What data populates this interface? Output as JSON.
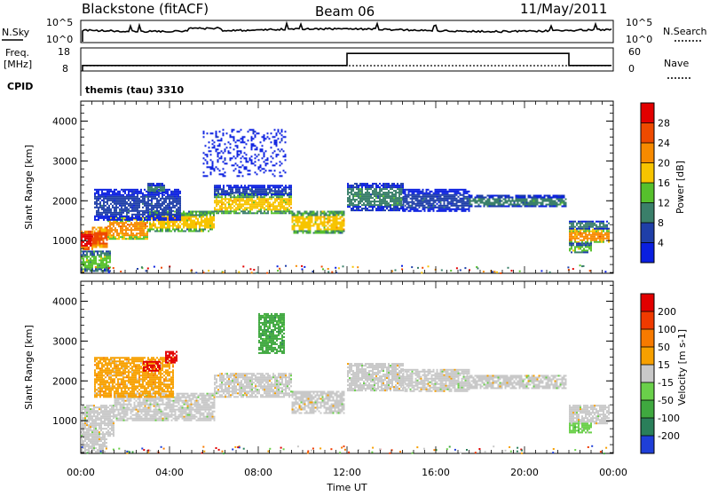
{
  "header": {
    "station": "Blackstone (fitACF)",
    "beam": "Beam 06",
    "date": "11/May/2011"
  },
  "strip_labels": {
    "nsky": "N.Sky",
    "nsky_top": "10^5",
    "nsky_bottom": "10^0",
    "nsearch": "N.Search",
    "nsearch_top": "10^5",
    "nsearch_bottom": "10^0",
    "freq": "Freq.",
    "freq_unit": "[MHz]",
    "freq_top": "18",
    "freq_bottom": "8",
    "nave": "Nave",
    "nave_top": "60",
    "nave_bottom": "0",
    "cpid": "CPID",
    "cpid_text": "themis (tau) 3310"
  },
  "chart_data": [
    {
      "type": "heatmap",
      "panel": "power",
      "ylabel": "Slant Range [km]",
      "xlabel": "Time UT",
      "ylim": [
        180,
        4500
      ],
      "yticks": [
        1000,
        2000,
        3000,
        4000
      ],
      "xlim": [
        0,
        24
      ],
      "xticks": [
        "00:00",
        "04:00",
        "08:00",
        "12:00",
        "16:00",
        "20:00",
        "00:00"
      ],
      "colorbar": {
        "label": "Power [dB]",
        "ticks": [
          "4",
          "8",
          "12",
          "16",
          "20",
          "24",
          "28"
        ],
        "colors": [
          "#0a1fe0",
          "#1f3fa8",
          "#3a7f6a",
          "#56c02c",
          "#f7c400",
          "#f78a00",
          "#ee4a00",
          "#e20000"
        ]
      },
      "bands": [
        {
          "t0": 0.0,
          "t1": 0.5,
          "r0": 800,
          "r1": 1250,
          "level": 7
        },
        {
          "t0": 0.5,
          "t1": 1.2,
          "r0": 850,
          "r1": 1350,
          "level": 6
        },
        {
          "t0": 1.2,
          "t1": 3.0,
          "r0": 1050,
          "r1": 1600,
          "level": 5
        },
        {
          "t0": 3.0,
          "t1": 6.0,
          "r0": 1250,
          "r1": 1750,
          "level": 4
        },
        {
          "t0": 0.6,
          "t1": 4.5,
          "r0": 1500,
          "r1": 2300,
          "level": 1
        },
        {
          "t0": 3.0,
          "t1": 3.8,
          "r0": 2200,
          "r1": 2450,
          "level": 2
        },
        {
          "t0": 6.0,
          "t1": 9.5,
          "r0": 1700,
          "r1": 2200,
          "level": 4
        },
        {
          "t0": 9.5,
          "t1": 11.9,
          "r0": 1200,
          "r1": 1750,
          "level": 4
        },
        {
          "t0": 6.0,
          "t1": 9.5,
          "r0": 2150,
          "r1": 2400,
          "level": 1
        },
        {
          "t0": 0.0,
          "t1": 1.3,
          "r0": 250,
          "r1": 750,
          "level": 3
        },
        {
          "t0": 12.0,
          "t1": 14.5,
          "r0": 1750,
          "r1": 2450,
          "level": 2
        },
        {
          "t0": 14.5,
          "t1": 17.5,
          "r0": 1750,
          "r1": 2300,
          "level": 1
        },
        {
          "t0": 17.5,
          "t1": 21.9,
          "r0": 1850,
          "r1": 2150,
          "level": 2
        },
        {
          "t0": 22.0,
          "t1": 23.8,
          "r0": 950,
          "r1": 1300,
          "level": 5
        },
        {
          "t0": 22.0,
          "t1": 23.8,
          "r0": 1300,
          "r1": 1500,
          "level": 2
        },
        {
          "t0": 22.0,
          "t1": 23.0,
          "r0": 700,
          "r1": 950,
          "level": 3
        },
        {
          "t0": 5.5,
          "t1": 9.2,
          "r0": 2600,
          "r1": 3800,
          "level": 0
        }
      ]
    },
    {
      "type": "heatmap",
      "panel": "velocity",
      "ylabel": "Slant Range [km]",
      "xlabel": "Time UT",
      "ylim": [
        180,
        4500
      ],
      "yticks": [
        1000,
        2000,
        3000,
        4000
      ],
      "xlim": [
        0,
        24
      ],
      "xticks": [
        "00:00",
        "04:00",
        "08:00",
        "12:00",
        "16:00",
        "20:00",
        "00:00"
      ],
      "colorbar": {
        "label": "Velocity [m s-1]",
        "ticks": [
          "200",
          "100",
          "50",
          "15",
          "-15",
          "-50",
          "-100",
          "-200"
        ],
        "colors": [
          "#1f3fd8",
          "#2a7f5a",
          "#3fa83f",
          "#6ad04a",
          "#c8c8c8",
          "#f7a000",
          "#f77a00",
          "#f03a00",
          "#e20000"
        ]
      },
      "bands": [
        {
          "t0": 0.0,
          "t1": 1.5,
          "r0": 600,
          "r1": 1400,
          "level": 4
        },
        {
          "t0": 1.5,
          "t1": 6.0,
          "r0": 1000,
          "r1": 1700,
          "level": 4
        },
        {
          "t0": 0.6,
          "t1": 4.2,
          "r0": 1600,
          "r1": 2600,
          "level": 5
        },
        {
          "t0": 2.8,
          "t1": 3.6,
          "r0": 2250,
          "r1": 2500,
          "level": 8
        },
        {
          "t0": 3.8,
          "t1": 4.3,
          "r0": 2450,
          "r1": 2750,
          "level": 8
        },
        {
          "t0": 6.0,
          "t1": 9.5,
          "r0": 1600,
          "r1": 2200,
          "level": 4
        },
        {
          "t0": 9.5,
          "t1": 11.9,
          "r0": 1200,
          "r1": 1750,
          "level": 4
        },
        {
          "t0": 12.0,
          "t1": 14.5,
          "r0": 1750,
          "r1": 2450,
          "level": 4
        },
        {
          "t0": 14.5,
          "t1": 17.5,
          "r0": 1750,
          "r1": 2300,
          "level": 4
        },
        {
          "t0": 17.5,
          "t1": 21.9,
          "r0": 1800,
          "r1": 2150,
          "level": 4
        },
        {
          "t0": 22.0,
          "t1": 23.8,
          "r0": 950,
          "r1": 1400,
          "level": 4
        },
        {
          "t0": 22.0,
          "t1": 23.0,
          "r0": 700,
          "r1": 950,
          "level": 3
        },
        {
          "t0": 0.0,
          "t1": 1.2,
          "r0": 200,
          "r1": 600,
          "level": 4
        },
        {
          "t0": 8.0,
          "t1": 9.2,
          "r0": 2700,
          "r1": 3700,
          "level": 2
        }
      ]
    }
  ]
}
